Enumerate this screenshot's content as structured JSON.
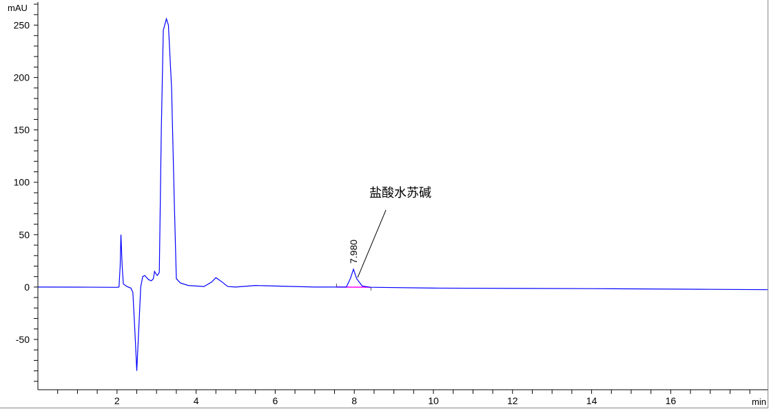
{
  "chart_data": {
    "type": "line",
    "ylabel": "mAU",
    "xlabel": "min",
    "xlim": [
      0,
      18.45
    ],
    "ylim": [
      -98,
      272
    ],
    "x_ticks": [
      2,
      4,
      6,
      8,
      10,
      12,
      14,
      16
    ],
    "y_ticks": [
      250,
      200,
      150,
      100,
      50,
      0,
      -50
    ],
    "grid": false,
    "series": [
      {
        "color": "#0000ff",
        "points": [
          [
            0,
            0
          ],
          [
            1.0,
            -0.1
          ],
          [
            2.0,
            -0.3
          ],
          [
            2.05,
            0
          ],
          [
            2.08,
            20
          ],
          [
            2.1,
            50
          ],
          [
            2.13,
            20
          ],
          [
            2.16,
            3
          ],
          [
            2.25,
            0.5
          ],
          [
            2.35,
            -1
          ],
          [
            2.4,
            -5
          ],
          [
            2.45,
            -40
          ],
          [
            2.5,
            -80
          ],
          [
            2.55,
            -40
          ],
          [
            2.6,
            0
          ],
          [
            2.65,
            10
          ],
          [
            2.7,
            11
          ],
          [
            2.8,
            7
          ],
          [
            2.87,
            6
          ],
          [
            2.92,
            8
          ],
          [
            2.95,
            15
          ],
          [
            2.98,
            13
          ],
          [
            3.02,
            11
          ],
          [
            3.07,
            14
          ],
          [
            3.12,
            150
          ],
          [
            3.17,
            245
          ],
          [
            3.25,
            256
          ],
          [
            3.3,
            250
          ],
          [
            3.38,
            190
          ],
          [
            3.45,
            80
          ],
          [
            3.5,
            8
          ],
          [
            3.6,
            4
          ],
          [
            3.8,
            1.5
          ],
          [
            4.2,
            0.5
          ],
          [
            4.4,
            5
          ],
          [
            4.5,
            9
          ],
          [
            4.65,
            5
          ],
          [
            4.8,
            0.5
          ],
          [
            5.0,
            0
          ],
          [
            5.5,
            1.5
          ],
          [
            6.0,
            1
          ],
          [
            7.0,
            0
          ],
          [
            7.8,
            0
          ],
          [
            7.9,
            8
          ],
          [
            7.98,
            17
          ],
          [
            8.06,
            8
          ],
          [
            8.2,
            1
          ],
          [
            8.4,
            -0.2
          ],
          [
            10,
            -1
          ],
          [
            14,
            -1.5
          ],
          [
            17,
            -2.2
          ],
          [
            18.45,
            -2.5
          ]
        ]
      }
    ],
    "integration_baseline": {
      "color": "#ff00ff",
      "start": 7.55,
      "end": 8.42
    },
    "annotations": [
      {
        "peak_rt": "7.980",
        "compound": "盐酸水苏碱"
      }
    ]
  }
}
